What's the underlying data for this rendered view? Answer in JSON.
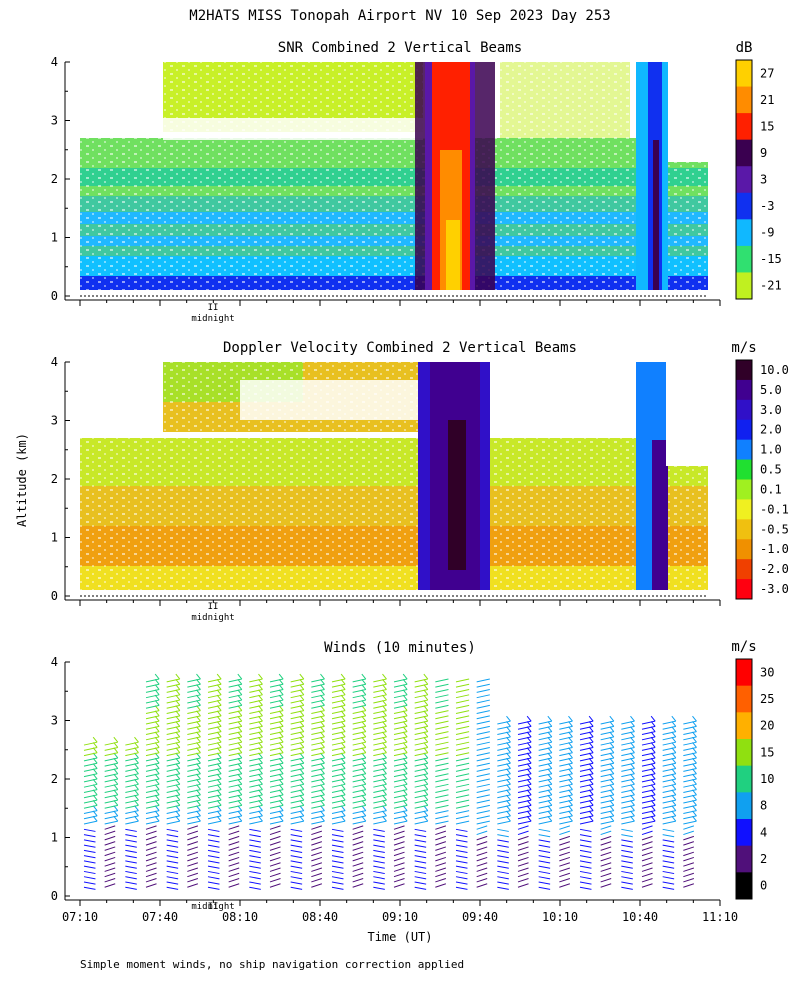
{
  "header": {
    "title": "M2HATS MISS Tonopah Airport NV  10 Sep 2023 Day 253"
  },
  "footer": {
    "note": "Simple moment winds, no ship navigation correction applied"
  },
  "axes": {
    "ylabel": "Altitude (km)",
    "xlabel": "Time (UT)",
    "y_ticks": [
      0,
      1,
      2,
      3,
      4
    ],
    "x_ticks": [
      "07:10",
      "07:40",
      "08:10",
      "08:40",
      "09:10",
      "09:40",
      "10:10",
      "10:40",
      "11:10"
    ],
    "midnight_label": "midnight",
    "midnight_marker": "II"
  },
  "chart_data": [
    {
      "type": "heatmap",
      "title": "SNR Combined 2 Vertical Beams",
      "colorbar_unit": "dB",
      "colorbar_labels": [
        "27",
        "21",
        "15",
        "9",
        "3",
        "-3",
        "-9",
        "-15",
        "-21"
      ],
      "colorbar_colors": [
        "#ffd000",
        "#ff8c00",
        "#ff2000",
        "#3a0050",
        "#5a18a8",
        "#1030f0",
        "#10b8ff",
        "#30e070",
        "#c0f020"
      ],
      "x_range": [
        "07:10",
        "11:10"
      ],
      "ylim": [
        0,
        4
      ]
    },
    {
      "type": "heatmap",
      "title": "Doppler Velocity Combined 2 Vertical Beams",
      "colorbar_unit": "m/s",
      "colorbar_labels": [
        "10.0",
        "5.0",
        "3.0",
        "2.0",
        "1.0",
        "0.5",
        "0.1",
        "-0.1",
        "-0.5",
        "-1.0",
        "-2.0",
        "-3.0"
      ],
      "colorbar_colors": [
        "#300028",
        "#400090",
        "#3010c8",
        "#1020f0",
        "#1080ff",
        "#20e030",
        "#a0f020",
        "#f0f020",
        "#f0c010",
        "#f09000",
        "#f04000",
        "#ff0010"
      ],
      "x_range": [
        "07:10",
        "11:10"
      ],
      "ylim": [
        0,
        4
      ]
    },
    {
      "type": "scatter",
      "title": "Winds (10 minutes)",
      "colorbar_unit": "m/s",
      "colorbar_labels": [
        "30",
        "25",
        "20",
        "15",
        "10",
        "8",
        "4",
        "2",
        "0"
      ],
      "colorbar_colors": [
        "#ff0000",
        "#ff6000",
        "#ffb000",
        "#90e010",
        "#20d080",
        "#10a0f0",
        "#1010ff",
        "#50107a",
        "#000000"
      ],
      "x_range": [
        "07:10",
        "11:10"
      ],
      "ylim": [
        0,
        4
      ]
    }
  ]
}
